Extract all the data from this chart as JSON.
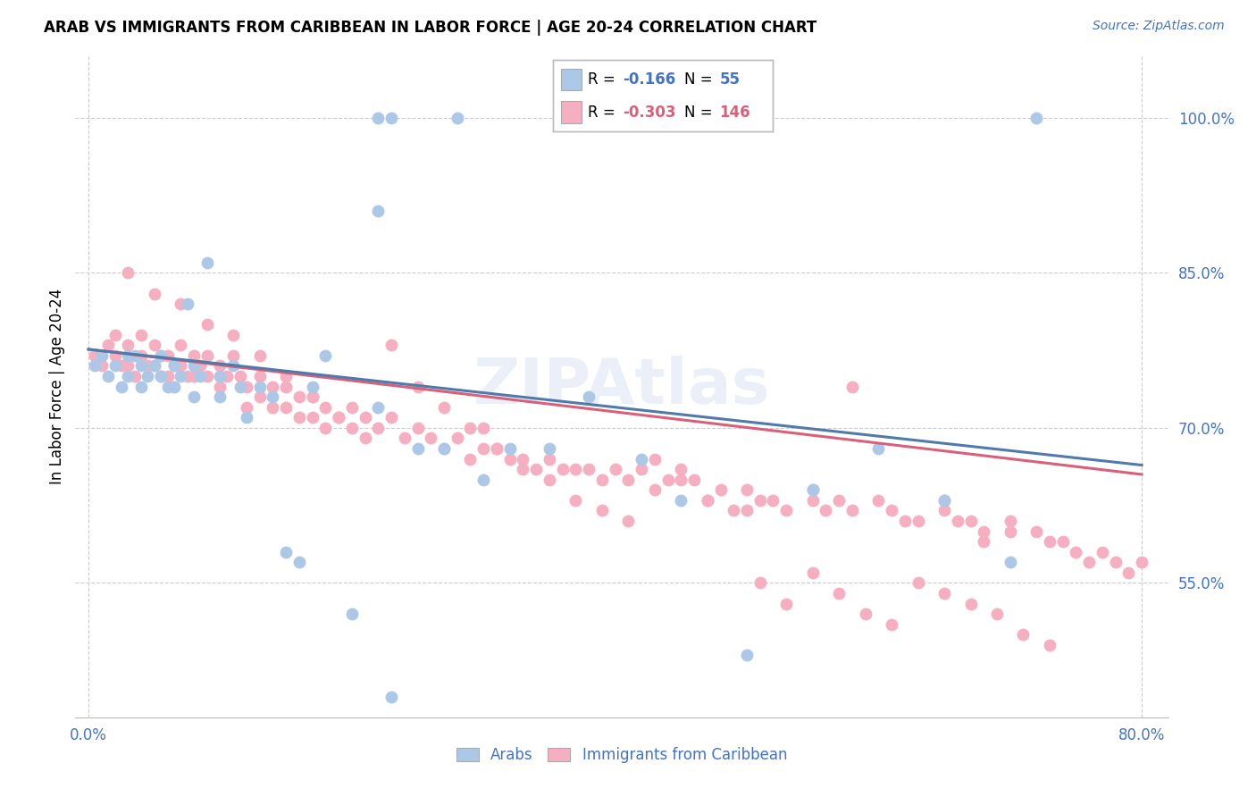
{
  "title": "ARAB VS IMMIGRANTS FROM CARIBBEAN IN LABOR FORCE | AGE 20-24 CORRELATION CHART",
  "source": "Source: ZipAtlas.com",
  "ylabel": "In Labor Force | Age 20-24",
  "xlim": [
    -0.01,
    0.82
  ],
  "ylim": [
    0.42,
    1.06
  ],
  "xtick_positions": [
    0.0,
    0.8
  ],
  "xticklabels": [
    "0.0%",
    "80.0%"
  ],
  "ytick_positions": [
    0.55,
    0.7,
    0.85,
    1.0
  ],
  "yticklabels": [
    "55.0%",
    "70.0%",
    "85.0%",
    "100.0%"
  ],
  "legend_R_arab": "-0.166",
  "legend_N_arab": "55",
  "legend_R_carib": "-0.303",
  "legend_N_carib": "146",
  "arab_color": "#adc8e6",
  "carib_color": "#f5afc0",
  "arab_line_color": "#4f7baa",
  "carib_line_color": "#d9607a",
  "tick_color": "#4472c4",
  "grid_color": "#cccccc",
  "arab_line_start_y": 0.776,
  "arab_line_end_y": 0.664,
  "carib_line_start_y": 0.776,
  "carib_line_end_y": 0.655,
  "arab_x": [
    0.005,
    0.01,
    0.015,
    0.02,
    0.025,
    0.03,
    0.03,
    0.035,
    0.04,
    0.04,
    0.045,
    0.05,
    0.055,
    0.055,
    0.06,
    0.065,
    0.065,
    0.07,
    0.075,
    0.08,
    0.08,
    0.085,
    0.09,
    0.1,
    0.1,
    0.11,
    0.115,
    0.12,
    0.13,
    0.14,
    0.15,
    0.16,
    0.17,
    0.18,
    0.2,
    0.22,
    0.23,
    0.25,
    0.27,
    0.3,
    0.32,
    0.35,
    0.38,
    0.42,
    0.45,
    0.5,
    0.55,
    0.6,
    0.65,
    0.7,
    0.22,
    0.23,
    0.28,
    0.22,
    0.72
  ],
  "arab_y": [
    0.76,
    0.77,
    0.75,
    0.76,
    0.74,
    0.77,
    0.75,
    0.77,
    0.76,
    0.74,
    0.75,
    0.76,
    0.77,
    0.75,
    0.74,
    0.76,
    0.74,
    0.75,
    0.82,
    0.76,
    0.73,
    0.75,
    0.86,
    0.75,
    0.73,
    0.76,
    0.74,
    0.71,
    0.74,
    0.73,
    0.58,
    0.57,
    0.74,
    0.77,
    0.52,
    0.72,
    0.44,
    0.68,
    0.68,
    0.65,
    0.68,
    0.68,
    0.73,
    0.67,
    0.63,
    0.48,
    0.64,
    0.68,
    0.63,
    0.57,
    1.0,
    1.0,
    1.0,
    0.91,
    1.0
  ],
  "carib_x": [
    0.005,
    0.01,
    0.015,
    0.02,
    0.02,
    0.025,
    0.03,
    0.03,
    0.035,
    0.04,
    0.04,
    0.045,
    0.05,
    0.05,
    0.055,
    0.055,
    0.06,
    0.06,
    0.065,
    0.07,
    0.07,
    0.075,
    0.08,
    0.08,
    0.085,
    0.09,
    0.09,
    0.1,
    0.1,
    0.105,
    0.11,
    0.115,
    0.12,
    0.12,
    0.13,
    0.13,
    0.14,
    0.14,
    0.15,
    0.15,
    0.16,
    0.16,
    0.17,
    0.17,
    0.18,
    0.18,
    0.19,
    0.2,
    0.2,
    0.21,
    0.22,
    0.23,
    0.24,
    0.25,
    0.26,
    0.27,
    0.28,
    0.29,
    0.3,
    0.3,
    0.31,
    0.32,
    0.33,
    0.34,
    0.35,
    0.36,
    0.37,
    0.38,
    0.39,
    0.4,
    0.41,
    0.42,
    0.43,
    0.44,
    0.45,
    0.46,
    0.47,
    0.48,
    0.5,
    0.5,
    0.51,
    0.52,
    0.53,
    0.55,
    0.55,
    0.56,
    0.57,
    0.58,
    0.58,
    0.6,
    0.61,
    0.62,
    0.63,
    0.65,
    0.65,
    0.66,
    0.67,
    0.68,
    0.68,
    0.7,
    0.7,
    0.72,
    0.73,
    0.74,
    0.75,
    0.76,
    0.77,
    0.78,
    0.79,
    0.8,
    0.03,
    0.05,
    0.07,
    0.09,
    0.11,
    0.13,
    0.15,
    0.17,
    0.19,
    0.21,
    0.23,
    0.25,
    0.27,
    0.29,
    0.31,
    0.33,
    0.35,
    0.37,
    0.39,
    0.41,
    0.43,
    0.45,
    0.47,
    0.49,
    0.51,
    0.53,
    0.55,
    0.57,
    0.59,
    0.61,
    0.63,
    0.65,
    0.67,
    0.69,
    0.71,
    0.73
  ],
  "carib_y": [
    0.77,
    0.76,
    0.78,
    0.79,
    0.77,
    0.76,
    0.78,
    0.76,
    0.75,
    0.79,
    0.77,
    0.76,
    0.78,
    0.76,
    0.77,
    0.75,
    0.77,
    0.75,
    0.76,
    0.78,
    0.76,
    0.75,
    0.77,
    0.75,
    0.76,
    0.77,
    0.75,
    0.76,
    0.74,
    0.75,
    0.77,
    0.75,
    0.74,
    0.72,
    0.75,
    0.73,
    0.74,
    0.72,
    0.74,
    0.72,
    0.73,
    0.71,
    0.73,
    0.71,
    0.72,
    0.7,
    0.71,
    0.72,
    0.7,
    0.71,
    0.7,
    0.71,
    0.69,
    0.7,
    0.69,
    0.68,
    0.69,
    0.67,
    0.7,
    0.68,
    0.68,
    0.67,
    0.67,
    0.66,
    0.67,
    0.66,
    0.66,
    0.66,
    0.65,
    0.66,
    0.65,
    0.66,
    0.64,
    0.65,
    0.66,
    0.65,
    0.63,
    0.64,
    0.64,
    0.62,
    0.63,
    0.63,
    0.62,
    0.64,
    0.63,
    0.62,
    0.63,
    0.62,
    0.74,
    0.63,
    0.62,
    0.61,
    0.61,
    0.63,
    0.62,
    0.61,
    0.61,
    0.6,
    0.59,
    0.61,
    0.6,
    0.6,
    0.59,
    0.59,
    0.58,
    0.57,
    0.58,
    0.57,
    0.56,
    0.57,
    0.85,
    0.83,
    0.82,
    0.8,
    0.79,
    0.77,
    0.75,
    0.73,
    0.71,
    0.69,
    0.78,
    0.74,
    0.72,
    0.7,
    0.68,
    0.66,
    0.65,
    0.63,
    0.62,
    0.61,
    0.67,
    0.65,
    0.63,
    0.62,
    0.55,
    0.53,
    0.56,
    0.54,
    0.52,
    0.51,
    0.55,
    0.54,
    0.53,
    0.52,
    0.5,
    0.49
  ]
}
